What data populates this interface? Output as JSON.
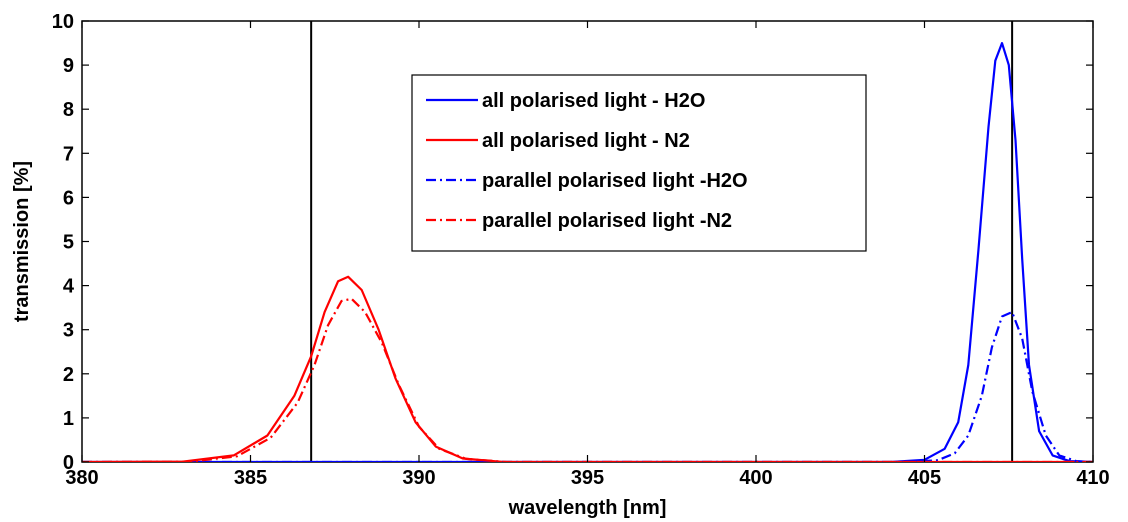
{
  "chart_data": {
    "type": "line",
    "title": "",
    "xlabel": "wavelength [nm]",
    "ylabel": "transmission [%]",
    "xlim": [
      380,
      410
    ],
    "ylim": [
      0,
      10
    ],
    "xticks": [
      "380",
      "385",
      "390",
      "395",
      "400",
      "405",
      "410"
    ],
    "yticks": [
      "0",
      "1",
      "2",
      "3",
      "4",
      "5",
      "6",
      "7",
      "8",
      "9",
      "10"
    ],
    "grid": false,
    "legend_position": "top-center",
    "vertical_lines": [
      386.8,
      407.6
    ],
    "series": [
      {
        "name": "all polarised light - H2O",
        "color": "#0000ff",
        "style": "solid",
        "x": [
          380,
          404.0,
          405.0,
          405.6,
          406.0,
          406.3,
          406.6,
          406.9,
          407.1,
          407.3,
          407.5,
          407.7,
          407.9,
          408.1,
          408.4,
          408.8,
          409.3,
          410
        ],
        "y": [
          0,
          0,
          0.05,
          0.3,
          0.9,
          2.2,
          4.8,
          7.6,
          9.1,
          9.5,
          9.0,
          7.3,
          4.6,
          2.2,
          0.7,
          0.15,
          0.02,
          0
        ]
      },
      {
        "name": "all polarised light - N2",
        "color": "#ff0000",
        "style": "solid",
        "x": [
          380,
          383.0,
          384.5,
          385.5,
          386.3,
          386.8,
          387.2,
          387.6,
          387.9,
          388.3,
          388.8,
          389.3,
          389.9,
          390.5,
          391.3,
          392.5,
          410
        ],
        "y": [
          0,
          0.01,
          0.15,
          0.6,
          1.5,
          2.4,
          3.4,
          4.1,
          4.2,
          3.9,
          3.0,
          1.9,
          0.9,
          0.35,
          0.08,
          0,
          0
        ]
      },
      {
        "name": "parallel polarised light -H2O",
        "color": "#0000ff",
        "style": "dashdot",
        "x": [
          380,
          404.5,
          405.4,
          405.9,
          406.3,
          406.7,
          407.0,
          407.3,
          407.6,
          407.9,
          408.2,
          408.6,
          409.0,
          409.5,
          410
        ],
        "y": [
          0,
          0,
          0.04,
          0.2,
          0.6,
          1.5,
          2.6,
          3.3,
          3.4,
          2.8,
          1.6,
          0.6,
          0.15,
          0.02,
          0
        ]
      },
      {
        "name": "parallel polarised light -N2",
        "color": "#ff0000",
        "style": "dashdot",
        "x": [
          380,
          383.2,
          384.6,
          385.6,
          386.4,
          386.9,
          387.3,
          387.7,
          388.0,
          388.4,
          388.9,
          389.4,
          390.0,
          390.6,
          391.4,
          392.6,
          410
        ],
        "y": [
          0,
          0.01,
          0.13,
          0.55,
          1.35,
          2.2,
          3.1,
          3.65,
          3.7,
          3.4,
          2.7,
          1.75,
          0.8,
          0.3,
          0.07,
          0,
          0
        ]
      }
    ]
  }
}
